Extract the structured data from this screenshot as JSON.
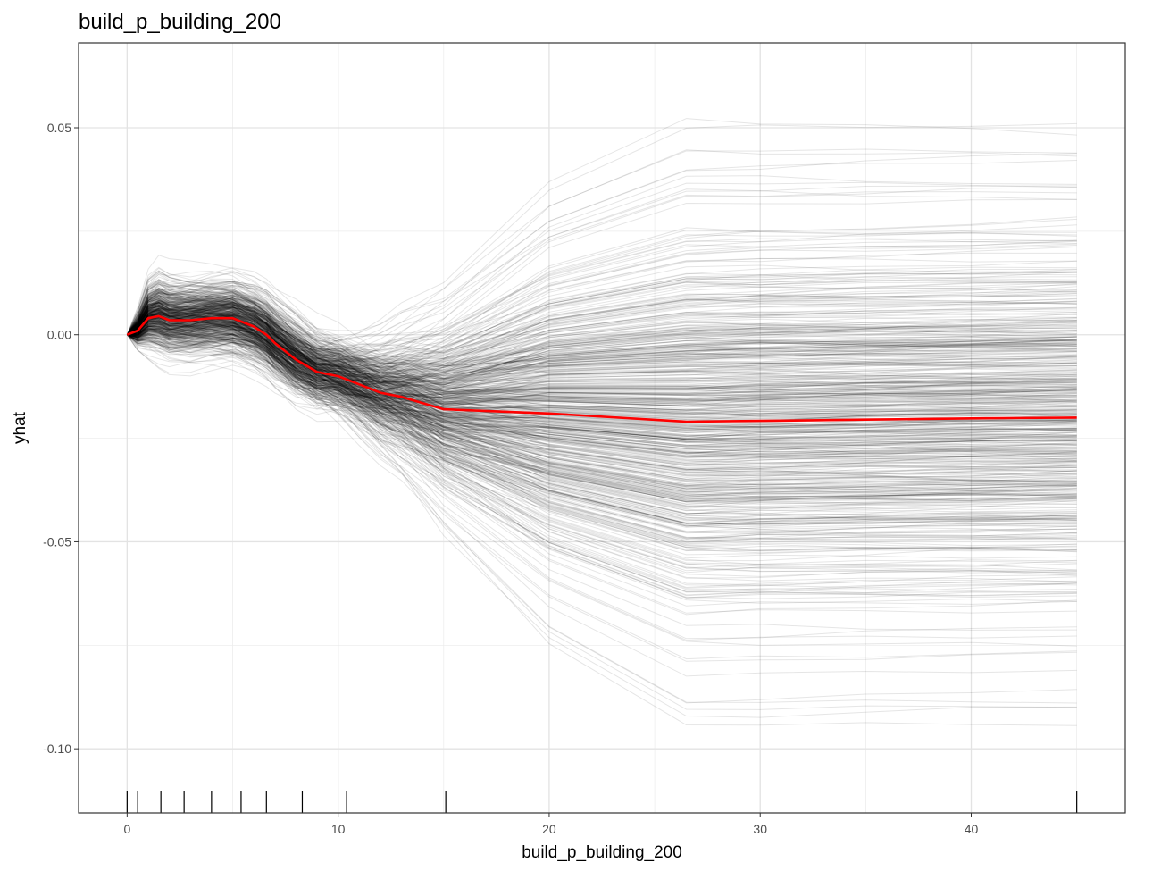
{
  "chart_data": {
    "type": "line",
    "title": "build_p_building_200",
    "xlabel": "build_p_building_200",
    "ylabel": "yhat",
    "xlim": [
      -2.3,
      47.3
    ],
    "ylim": [
      -0.1155,
      0.0705
    ],
    "x_ticks": [
      0,
      10,
      20,
      30,
      40
    ],
    "y_ticks": [
      0.05,
      0.0,
      -0.05,
      -0.1
    ],
    "x_tick_labels": [
      "0",
      "10",
      "20",
      "30",
      "40"
    ],
    "y_tick_labels": [
      "0.05",
      "0.00",
      "-0.05",
      "-0.10"
    ],
    "grid": true,
    "x": [
      0,
      0.5,
      1,
      1.5,
      2,
      3,
      4,
      5,
      6,
      6.6,
      7,
      8,
      9,
      10,
      11,
      12,
      13,
      15,
      20,
      26.5,
      30,
      35,
      40,
      45
    ],
    "pdp": [
      0.0,
      0.001,
      0.004,
      0.0045,
      0.0035,
      0.0035,
      0.004,
      0.004,
      0.002,
      0.0,
      -0.002,
      -0.006,
      -0.009,
      -0.01,
      -0.012,
      -0.014,
      -0.015,
      -0.018,
      -0.019,
      -0.021,
      -0.0208,
      -0.0205,
      -0.0202,
      -0.02
    ],
    "pdp_color": "#ff0000",
    "ice_color": "#000000",
    "rug_x": [
      0,
      0.5,
      1.6,
      2.7,
      4.0,
      5.4,
      6.6,
      8.3,
      10.4,
      15.1,
      45
    ],
    "ice_summary": {
      "count": 600,
      "final_min": -0.104,
      "final_max": 0.063,
      "final_center": -0.02
    }
  }
}
